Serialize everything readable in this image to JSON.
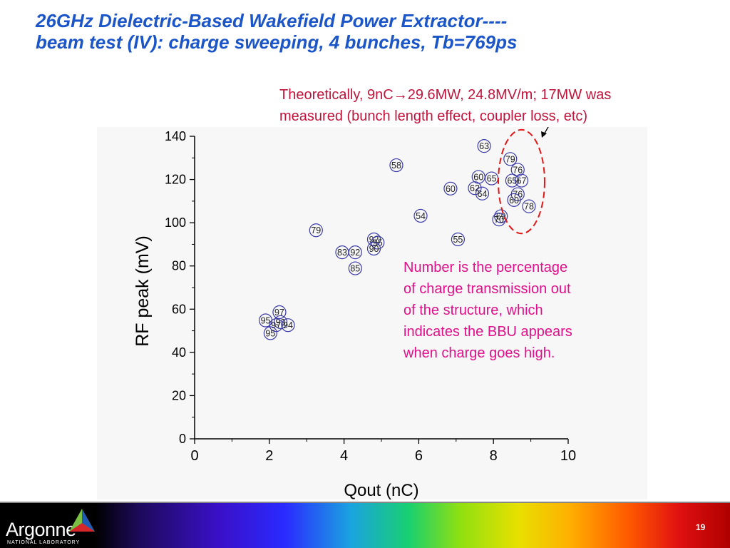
{
  "slide": {
    "title_line1": "26GHz Dielectric-Based Wakefield Power Extractor----",
    "title_line2": "beam test (IV): charge sweeping, 4 bunches, Tb=769ps",
    "note_top_line1_a": "Theoretically, 9nC",
    "note_top_arrow": "→",
    "note_top_line1_b": "29.6MW, 24.8MV/m; 17MW was",
    "note_top_line2": "measured (bunch length effect, coupler loss, etc)",
    "note_side_lines": [
      "Number is the percentage",
      "of charge transmission out",
      "of the structure, which",
      "indicates the BBU appears",
      "when charge goes high."
    ],
    "logo_text": "Argonne",
    "logo_sub": "NATIONAL LABORATORY",
    "page_number": "19"
  },
  "colors": {
    "title": "#1b55c8",
    "note_top": "#c0143c",
    "note_side": "#e0108a",
    "marker": "#3a3aa8",
    "highlight_ellipse": "#e01818"
  },
  "chart_data": {
    "type": "scatter",
    "xlabel": "Qout (nC)",
    "ylabel": "RF peak (mV)",
    "xlim": [
      0,
      10
    ],
    "ylim": [
      0,
      140
    ],
    "xticks": [
      0,
      2,
      4,
      6,
      8,
      10
    ],
    "yticks": [
      0,
      20,
      40,
      60,
      80,
      100,
      120,
      140
    ],
    "grid": false,
    "points": [
      {
        "x": 7.75,
        "y": 135.5,
        "label": "63"
      },
      {
        "x": 5.4,
        "y": 126.6,
        "label": "58"
      },
      {
        "x": 8.45,
        "y": 129.5,
        "label": "79"
      },
      {
        "x": 8.65,
        "y": 124.5,
        "label": "76"
      },
      {
        "x": 7.6,
        "y": 121.2,
        "label": "60"
      },
      {
        "x": 7.95,
        "y": 120.5,
        "label": "65"
      },
      {
        "x": 8.5,
        "y": 119.5,
        "label": "65"
      },
      {
        "x": 8.75,
        "y": 119.5,
        "label": "67"
      },
      {
        "x": 6.85,
        "y": 115.8,
        "label": "60"
      },
      {
        "x": 7.5,
        "y": 116.0,
        "label": "62"
      },
      {
        "x": 7.7,
        "y": 113.5,
        "label": "64"
      },
      {
        "x": 8.65,
        "y": 113.2,
        "label": "76"
      },
      {
        "x": 8.55,
        "y": 110.5,
        "label": "60"
      },
      {
        "x": 8.95,
        "y": 107.6,
        "label": "78"
      },
      {
        "x": 6.05,
        "y": 103.2,
        "label": "54"
      },
      {
        "x": 8.2,
        "y": 103.0,
        "label": "69"
      },
      {
        "x": 8.15,
        "y": 101.5,
        "label": "70"
      },
      {
        "x": 3.25,
        "y": 96.5,
        "label": "79"
      },
      {
        "x": 7.05,
        "y": 92.3,
        "label": "55"
      },
      {
        "x": 4.8,
        "y": 92.3,
        "label": "92"
      },
      {
        "x": 4.9,
        "y": 90.8,
        "label": "95"
      },
      {
        "x": 4.8,
        "y": 88.0,
        "label": "90"
      },
      {
        "x": 3.95,
        "y": 86.3,
        "label": "83"
      },
      {
        "x": 4.3,
        "y": 86.3,
        "label": "92"
      },
      {
        "x": 4.3,
        "y": 78.9,
        "label": "85"
      },
      {
        "x": 2.27,
        "y": 58.6,
        "label": "97"
      },
      {
        "x": 1.9,
        "y": 54.8,
        "label": "95"
      },
      {
        "x": 2.3,
        "y": 54.0,
        "label": "93"
      },
      {
        "x": 2.18,
        "y": 52.6,
        "label": "97"
      },
      {
        "x": 2.5,
        "y": 52.6,
        "label": "94"
      },
      {
        "x": 2.03,
        "y": 48.9,
        "label": "95"
      }
    ],
    "annotation": {
      "type": "ellipse",
      "center": [
        8.75,
        119
      ],
      "rx_data": 0.62,
      "ry_data": 24
    }
  }
}
